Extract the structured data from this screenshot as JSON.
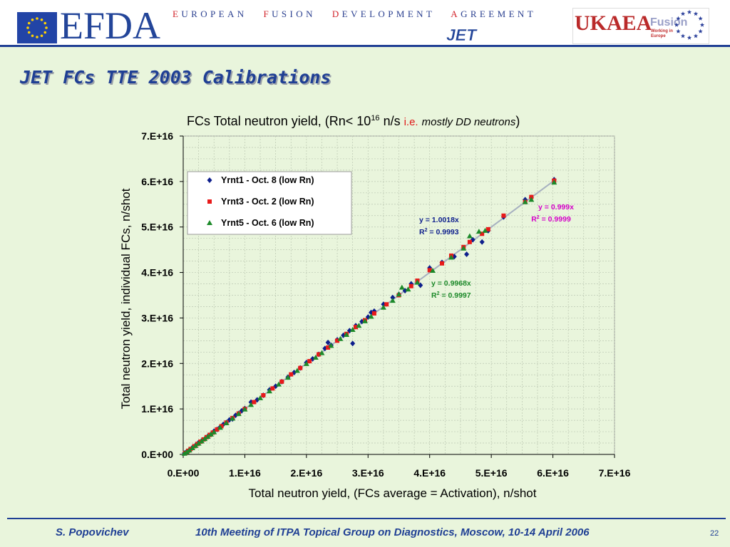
{
  "header": {
    "efda_logo_text": "EFDA",
    "efda_full_name": [
      {
        "initial": "E",
        "rest": "UROPEAN"
      },
      {
        "initial": "F",
        "rest": "USION"
      },
      {
        "initial": "D",
        "rest": "EVELOPMENT"
      },
      {
        "initial": "A",
        "rest": "GREEMENT"
      }
    ],
    "jet_logo_text": "JET",
    "ukaea_logo_text": "UKAEA",
    "fusion_logo_text": "Fusion",
    "fusion_tagline": "Working in Europe"
  },
  "slide": {
    "title": "JET FCs TTE 2003 Calibrations"
  },
  "chart_title": {
    "main": "FCs Total neutron yield, (Rn< 10",
    "sup": "16",
    "unit": " n/s ",
    "ie": "i.e.",
    "note": "mostly DD neutrons",
    "close": ")"
  },
  "colors": {
    "series_blue": "#0d1e8c",
    "series_red": "#e81a1a",
    "series_green": "#1d8a2a",
    "fit_magenta": "#d400c8",
    "fit_line": "#a6b0c0",
    "plot_bg": "#e9f5dc",
    "title_blue": "#1f3f94"
  },
  "chart_data": {
    "type": "scatter",
    "xlabel": "Total neutron yield, (FCs average = Activation), n/shot",
    "ylabel": "Total neutron yield, individual FCs, n/shot",
    "xlim": [
      0,
      7e+16
    ],
    "ylim": [
      0,
      7e+16
    ],
    "x_ticks": [
      "0.E+00",
      "1.E+16",
      "2.E+16",
      "3.E+16",
      "4.E+16",
      "5.E+16",
      "6.E+16",
      "7.E+16"
    ],
    "y_ticks": [
      "0.E+00",
      "1.E+16",
      "2.E+16",
      "3.E+16",
      "4.E+16",
      "5.E+16",
      "6.E+16",
      "7.E+16"
    ],
    "grid": true,
    "legend_position": "top-left",
    "series": [
      {
        "name": "Yrnt1 - Oct. 8 (low Rn)",
        "marker": "diamond",
        "points": [
          [
            200000000000000.0,
            300000000000000.0
          ],
          [
            500000000000000.0,
            500000000000000.0
          ],
          [
            1000000000000000.0,
            1000000000000000.0
          ],
          [
            1500000000000000.0,
            1500000000000000.0
          ],
          [
            2000000000000000.0,
            2000000000000000.0
          ],
          [
            2500000000000000.0,
            2600000000000000.0
          ],
          [
            3000000000000000.0,
            3000000000000000.0
          ],
          [
            3500000000000000.0,
            3400000000000000.0
          ],
          [
            4000000000000000.0,
            4000000000000000.0
          ],
          [
            4500000000000000.0,
            4400000000000000.0
          ],
          [
            5000000000000000.0,
            5100000000000000.0
          ],
          [
            5500000000000000.0,
            5500000000000000.0
          ],
          [
            6000000000000000.0,
            6000000000000000.0
          ],
          [
            6500000000000000.0,
            6600000000000000.0
          ],
          [
            7000000000000000.0,
            7000000000000000.0
          ],
          [
            7500000000000000.0,
            7600000000000000.0
          ],
          [
            8000000000000000.0,
            7800000000000000.0
          ],
          [
            8500000000000000.0,
            8600000000000000.0
          ],
          [
            9000000000000000.0,
            9000000000000000.0
          ],
          [
            9500000000000000.0,
            9600000000000000.0
          ],
          [
            1e+16,
            1.01e+16
          ],
          [
            1.1e+16,
            1.15e+16
          ],
          [
            1.2e+16,
            1.2e+16
          ],
          [
            1.3e+16,
            1.3e+16
          ],
          [
            1.4e+16,
            1.42e+16
          ],
          [
            1.5e+16,
            1.5e+16
          ],
          [
            1.6e+16,
            1.6e+16
          ],
          [
            1.7e+16,
            1.7e+16
          ],
          [
            1.8e+16,
            1.8e+16
          ],
          [
            1.9e+16,
            1.9e+16
          ],
          [
            2e+16,
            2.02e+16
          ],
          [
            2.1e+16,
            2.1e+16
          ],
          [
            2.2e+16,
            2.2e+16
          ],
          [
            2.3e+16,
            2.33e+16
          ],
          [
            2.35e+16,
            2.46e+16
          ],
          [
            2.4e+16,
            2.4e+16
          ],
          [
            2.5e+16,
            2.52e+16
          ],
          [
            2.6e+16,
            2.62e+16
          ],
          [
            2.7e+16,
            2.72e+16
          ],
          [
            2.75e+16,
            2.44e+16
          ],
          [
            2.8e+16,
            2.83e+16
          ],
          [
            2.9e+16,
            2.92e+16
          ],
          [
            3e+16,
            3.02e+16
          ],
          [
            3.05e+16,
            3.12e+16
          ],
          [
            3.1e+16,
            3.15e+16
          ],
          [
            3.25e+16,
            3.3e+16
          ],
          [
            3.4e+16,
            3.45e+16
          ],
          [
            3.5e+16,
            3.52e+16
          ],
          [
            3.6e+16,
            3.6e+16
          ],
          [
            3.7e+16,
            3.75e+16
          ],
          [
            3.85e+16,
            3.72e+16
          ],
          [
            4e+16,
            4.1e+16
          ],
          [
            4.2e+16,
            4.22e+16
          ],
          [
            4.4e+16,
            4.35e+16
          ],
          [
            4.6e+16,
            4.4e+16
          ],
          [
            4.7e+16,
            4.72e+16
          ],
          [
            4.85e+16,
            4.67e+16
          ],
          [
            4.95e+16,
            4.92e+16
          ],
          [
            5.2e+16,
            5.22e+16
          ],
          [
            5.55e+16,
            5.6e+16
          ],
          [
            5.65e+16,
            5.65e+16
          ],
          [
            6.02e+16,
            6.04e+16
          ]
        ]
      },
      {
        "name": "Yrnt3 - Oct. 2 (low Rn)",
        "marker": "square",
        "points": [
          [
            300000000000000.0,
            300000000000000.0
          ],
          [
            800000000000000.0,
            800000000000000.0
          ],
          [
            1200000000000000.0,
            1200000000000000.0
          ],
          [
            1800000000000000.0,
            1800000000000000.0
          ],
          [
            2300000000000000.0,
            2300000000000000.0
          ],
          [
            2800000000000000.0,
            2800000000000000.0
          ],
          [
            3300000000000000.0,
            3300000000000000.0
          ],
          [
            3800000000000000.0,
            3800000000000000.0
          ],
          [
            4300000000000000.0,
            4300000000000000.0
          ],
          [
            4800000000000000.0,
            4800000000000000.0
          ],
          [
            5500000000000000.0,
            5500000000000000.0
          ],
          [
            6200000000000000.0,
            6200000000000000.0
          ],
          [
            7000000000000000.0,
            7000000000000000.0
          ],
          [
            8000000000000000.0,
            8000000000000000.0
          ],
          [
            9000000000000000.0,
            9000000000000000.0
          ],
          [
            1e+16,
            1e+16
          ],
          [
            1.15e+16,
            1.15e+16
          ],
          [
            1.3e+16,
            1.3e+16
          ],
          [
            1.45e+16,
            1.45e+16
          ],
          [
            1.6e+16,
            1.6e+16
          ],
          [
            1.75e+16,
            1.76e+16
          ],
          [
            1.9e+16,
            1.9e+16
          ],
          [
            2.05e+16,
            2.05e+16
          ],
          [
            2.2e+16,
            2.2e+16
          ],
          [
            2.35e+16,
            2.35e+16
          ],
          [
            2.5e+16,
            2.5e+16
          ],
          [
            2.65e+16,
            2.65e+16
          ],
          [
            2.8e+16,
            2.8e+16
          ],
          [
            2.95e+16,
            2.95e+16
          ],
          [
            3.1e+16,
            3.1e+16
          ],
          [
            3.3e+16,
            3.3e+16
          ],
          [
            3.5e+16,
            3.5e+16
          ],
          [
            3.7e+16,
            3.7e+16
          ],
          [
            3.8e+16,
            3.82e+16
          ],
          [
            4e+16,
            4.05e+16
          ],
          [
            4.2e+16,
            4.2e+16
          ],
          [
            4.35e+16,
            4.37e+16
          ],
          [
            4.55e+16,
            4.56e+16
          ],
          [
            4.65e+16,
            4.67e+16
          ],
          [
            4.85e+16,
            4.85e+16
          ],
          [
            4.95e+16,
            4.95e+16
          ],
          [
            5.2e+16,
            5.25e+16
          ],
          [
            5.55e+16,
            5.55e+16
          ],
          [
            5.65e+16,
            5.66e+16
          ],
          [
            6.02e+16,
            6.02e+16
          ]
        ]
      },
      {
        "name": "Yrnt5 - Oct. 6 (low Rn)",
        "marker": "triangle",
        "points": [
          [
            200000000000000.0,
            200000000000000.0
          ],
          [
            600000000000000.0,
            500000000000000.0
          ],
          [
            1000000000000000.0,
            900000000000000.0
          ],
          [
            1500000000000000.0,
            1400000000000000.0
          ],
          [
            2000000000000000.0,
            1900000000000000.0
          ],
          [
            2500000000000000.0,
            2400000000000000.0
          ],
          [
            3000000000000000.0,
            2900000000000000.0
          ],
          [
            3500000000000000.0,
            3400000000000000.0
          ],
          [
            4000000000000000.0,
            3900000000000000.0
          ],
          [
            4500000000000000.0,
            4400000000000000.0
          ],
          [
            5000000000000000.0,
            4900000000000000.0
          ],
          [
            6000000000000000.0,
            5900000000000000.0
          ],
          [
            7000000000000000.0,
            6900000000000000.0
          ],
          [
            8000000000000000.0,
            7900000000000000.0
          ],
          [
            9000000000000000.0,
            8900000000000000.0
          ],
          [
            1e+16,
            9900000000000000.0
          ],
          [
            1.1e+16,
            1.09e+16
          ],
          [
            1.25e+16,
            1.24e+16
          ],
          [
            1.4e+16,
            1.39e+16
          ],
          [
            1.55e+16,
            1.54e+16
          ],
          [
            1.7e+16,
            1.69e+16
          ],
          [
            1.85e+16,
            1.84e+16
          ],
          [
            2e+16,
            1.99e+16
          ],
          [
            2.15e+16,
            2.13e+16
          ],
          [
            2.25e+16,
            2.23e+16
          ],
          [
            2.4e+16,
            2.39e+16
          ],
          [
            2.55e+16,
            2.54e+16
          ],
          [
            2.65e+16,
            2.63e+16
          ],
          [
            2.75e+16,
            2.74e+16
          ],
          [
            2.85e+16,
            2.83e+16
          ],
          [
            2.95e+16,
            2.93e+16
          ],
          [
            3.05e+16,
            3.03e+16
          ],
          [
            3.25e+16,
            3.23e+16
          ],
          [
            3.4e+16,
            3.38e+16
          ],
          [
            3.5e+16,
            3.52e+16
          ],
          [
            3.55e+16,
            3.67e+16
          ],
          [
            3.65e+16,
            3.63e+16
          ],
          [
            3.8e+16,
            3.78e+16
          ],
          [
            4.05e+16,
            4.04e+16
          ],
          [
            4.35e+16,
            4.33e+16
          ],
          [
            4.55e+16,
            4.53e+16
          ],
          [
            4.65e+16,
            4.8e+16
          ],
          [
            4.8e+16,
            4.9e+16
          ],
          [
            4.9e+16,
            4.92e+16
          ],
          [
            5.55e+16,
            5.55e+16
          ],
          [
            5.65e+16,
            5.6e+16
          ],
          [
            6.02e+16,
            5.98e+16
          ]
        ]
      }
    ],
    "annotations": [
      {
        "text": "y = 1.0018x",
        "r2": "R",
        "r2_sup": "2",
        "r2_value": " = 0.9993",
        "color": "#0d1e8c"
      },
      {
        "text": "y = 0.999x",
        "r2": "R",
        "r2_sup": "2",
        "r2_value": " = 0.9999",
        "color": "#d400c8"
      },
      {
        "text": "y = 0.9968x",
        "r2": "R",
        "r2_sup": "2",
        "r2_value": " = 0.9997",
        "color": "#1d8a2a"
      }
    ]
  },
  "footer": {
    "author": "S. Popovichev",
    "meeting": "10th Meeting of ITPA Topical Group on Diagnostics, Moscow, 10-14 April 2006",
    "page": "22"
  }
}
